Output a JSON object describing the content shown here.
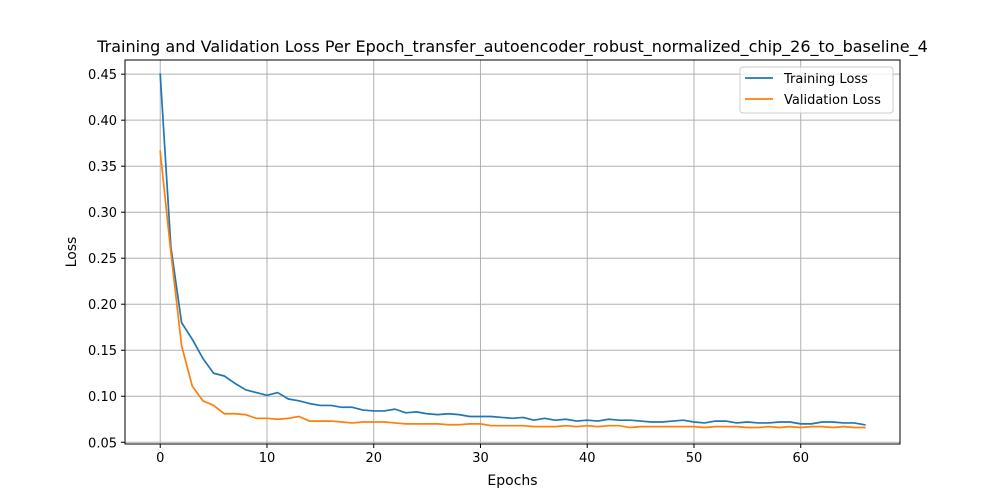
{
  "chart_data": {
    "type": "line",
    "title": "Training and Validation Loss Per Epoch_transfer_autoencoder_robust_normalized_chip_26_to_baseline_4",
    "xlabel": "Epochs",
    "ylabel": "Loss",
    "xlim": [
      -3.3,
      69.3
    ],
    "ylim": [
      0.0481,
      0.4654
    ],
    "xticks": [
      0,
      10,
      20,
      30,
      40,
      50,
      60
    ],
    "xtick_labels": [
      "0",
      "10",
      "20",
      "30",
      "40",
      "50",
      "60"
    ],
    "yticks": [
      0.05,
      0.1,
      0.15,
      0.2,
      0.25,
      0.3,
      0.35,
      0.4,
      0.45
    ],
    "ytick_labels": [
      "0.05",
      "0.10",
      "0.15",
      "0.20",
      "0.25",
      "0.30",
      "0.35",
      "0.40",
      "0.45"
    ],
    "grid": true,
    "legend_position": "top-right",
    "x": [
      0,
      1,
      2,
      3,
      4,
      5,
      6,
      7,
      8,
      9,
      10,
      11,
      12,
      13,
      14,
      15,
      16,
      17,
      18,
      19,
      20,
      21,
      22,
      23,
      24,
      25,
      26,
      27,
      28,
      29,
      30,
      31,
      32,
      33,
      34,
      35,
      36,
      37,
      38,
      39,
      40,
      41,
      42,
      43,
      44,
      45,
      46,
      47,
      48,
      49,
      50,
      51,
      52,
      53,
      54,
      55,
      56,
      57,
      58,
      59,
      60,
      61,
      62,
      63,
      64,
      65,
      66
    ],
    "series": [
      {
        "name": "Training Loss",
        "color": "#1f77b4",
        "values": [
          0.45,
          0.262,
          0.18,
          0.162,
          0.141,
          0.125,
          0.122,
          0.114,
          0.107,
          0.104,
          0.101,
          0.104,
          0.097,
          0.095,
          0.092,
          0.09,
          0.09,
          0.088,
          0.088,
          0.085,
          0.084,
          0.084,
          0.086,
          0.082,
          0.083,
          0.081,
          0.08,
          0.081,
          0.08,
          0.078,
          0.078,
          0.078,
          0.077,
          0.076,
          0.077,
          0.074,
          0.076,
          0.074,
          0.075,
          0.073,
          0.074,
          0.073,
          0.075,
          0.074,
          0.074,
          0.073,
          0.072,
          0.072,
          0.073,
          0.074,
          0.072,
          0.071,
          0.073,
          0.073,
          0.071,
          0.072,
          0.071,
          0.071,
          0.072,
          0.072,
          0.07,
          0.07,
          0.072,
          0.072,
          0.071,
          0.071,
          0.069
        ]
      },
      {
        "name": "Validation Loss",
        "color": "#ff7f0e",
        "values": [
          0.366,
          0.256,
          0.155,
          0.111,
          0.095,
          0.09,
          0.081,
          0.081,
          0.08,
          0.076,
          0.076,
          0.075,
          0.076,
          0.078,
          0.073,
          0.073,
          0.073,
          0.072,
          0.071,
          0.072,
          0.072,
          0.072,
          0.071,
          0.07,
          0.07,
          0.07,
          0.07,
          0.069,
          0.069,
          0.07,
          0.07,
          0.068,
          0.068,
          0.068,
          0.068,
          0.067,
          0.067,
          0.067,
          0.068,
          0.067,
          0.068,
          0.067,
          0.068,
          0.068,
          0.066,
          0.067,
          0.067,
          0.067,
          0.067,
          0.067,
          0.067,
          0.066,
          0.067,
          0.067,
          0.067,
          0.066,
          0.066,
          0.067,
          0.066,
          0.067,
          0.066,
          0.067,
          0.067,
          0.066,
          0.067,
          0.066,
          0.066
        ]
      }
    ]
  }
}
